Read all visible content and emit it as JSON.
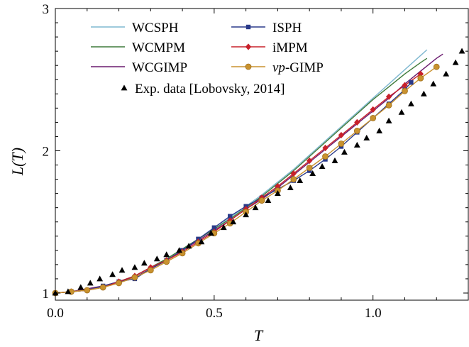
{
  "chart_data": {
    "type": "line",
    "title": "",
    "xlabel": "T",
    "ylabel": "L(T)",
    "xlim": [
      0,
      1.3
    ],
    "ylim": [
      0.95,
      3
    ],
    "xticks": [
      0.0,
      0.5,
      1.0
    ],
    "xtick_labels": [
      "0.0",
      "0.5",
      "1.0"
    ],
    "yticks": [
      1,
      2,
      3
    ],
    "ytick_labels": [
      "1",
      "2",
      "3"
    ],
    "grid": false,
    "legend_position": "top",
    "series": [
      {
        "name": "WCSPH",
        "color": "#7fb8d0",
        "marker": "none",
        "x": [
          0.0,
          0.05,
          0.1,
          0.15,
          0.2,
          0.25,
          0.3,
          0.35,
          0.4,
          0.45,
          0.5,
          0.55,
          0.6,
          0.65,
          0.7,
          0.75,
          0.8,
          0.85,
          0.9,
          0.95,
          1.0,
          1.05,
          1.1,
          1.15,
          1.17
        ],
        "y": [
          1.0,
          1.01,
          1.02,
          1.04,
          1.08,
          1.12,
          1.18,
          1.24,
          1.31,
          1.38,
          1.45,
          1.53,
          1.61,
          1.69,
          1.78,
          1.87,
          1.97,
          2.07,
          2.17,
          2.27,
          2.37,
          2.47,
          2.57,
          2.67,
          2.71
        ]
      },
      {
        "name": "WCMPM",
        "color": "#3e7a3a",
        "marker": "none",
        "x": [
          0.0,
          0.05,
          0.1,
          0.15,
          0.2,
          0.25,
          0.3,
          0.35,
          0.4,
          0.45,
          0.5,
          0.55,
          0.6,
          0.65,
          0.7,
          0.75,
          0.8,
          0.85,
          0.9,
          0.95,
          1.0,
          1.05,
          1.1,
          1.15,
          1.17
        ],
        "y": [
          1.0,
          1.01,
          1.02,
          1.04,
          1.08,
          1.12,
          1.18,
          1.24,
          1.31,
          1.38,
          1.45,
          1.52,
          1.6,
          1.68,
          1.77,
          1.86,
          1.96,
          2.06,
          2.16,
          2.26,
          2.36,
          2.45,
          2.54,
          2.62,
          2.65
        ]
      },
      {
        "name": "WCGIMP",
        "color": "#6a1a6e",
        "marker": "none",
        "x": [
          0.0,
          0.05,
          0.1,
          0.15,
          0.2,
          0.25,
          0.3,
          0.35,
          0.4,
          0.45,
          0.5,
          0.55,
          0.6,
          0.65,
          0.7,
          0.75,
          0.8,
          0.85,
          0.9,
          0.95,
          1.0,
          1.05,
          1.1,
          1.15,
          1.2,
          1.22
        ],
        "y": [
          1.0,
          1.01,
          1.03,
          1.05,
          1.08,
          1.11,
          1.17,
          1.23,
          1.3,
          1.37,
          1.44,
          1.51,
          1.59,
          1.66,
          1.74,
          1.83,
          1.92,
          2.01,
          2.1,
          2.19,
          2.28,
          2.37,
          2.47,
          2.56,
          2.65,
          2.68
        ]
      },
      {
        "name": "ISPH",
        "color": "#2a3a8a",
        "marker": "square",
        "x": [
          0.0,
          0.05,
          0.1,
          0.15,
          0.2,
          0.25,
          0.3,
          0.35,
          0.4,
          0.45,
          0.5,
          0.55,
          0.6,
          0.65,
          0.7,
          0.75,
          0.8,
          0.85,
          0.9,
          0.95,
          1.0,
          1.05,
          1.1,
          1.12
        ],
        "y": [
          1.0,
          1.01,
          1.02,
          1.05,
          1.08,
          1.1,
          1.17,
          1.23,
          1.3,
          1.38,
          1.46,
          1.54,
          1.61,
          1.67,
          1.73,
          1.79,
          1.86,
          1.94,
          2.03,
          2.13,
          2.23,
          2.33,
          2.43,
          2.48
        ]
      },
      {
        "name": "iMPM",
        "color": "#c8202a",
        "marker": "diamond",
        "x": [
          0.0,
          0.05,
          0.1,
          0.15,
          0.2,
          0.25,
          0.3,
          0.35,
          0.4,
          0.45,
          0.5,
          0.55,
          0.6,
          0.65,
          0.7,
          0.75,
          0.8,
          0.85,
          0.9,
          0.95,
          1.0,
          1.05,
          1.1,
          1.15
        ],
        "y": [
          1.0,
          1.01,
          1.02,
          1.04,
          1.08,
          1.12,
          1.18,
          1.23,
          1.29,
          1.36,
          1.43,
          1.51,
          1.59,
          1.67,
          1.75,
          1.84,
          1.93,
          2.02,
          2.11,
          2.2,
          2.29,
          2.38,
          2.46,
          2.54
        ]
      },
      {
        "name": "vp-GIMP",
        "color": "#c9922e",
        "marker": "circle",
        "x": [
          0.0,
          0.05,
          0.1,
          0.15,
          0.2,
          0.25,
          0.3,
          0.35,
          0.4,
          0.45,
          0.5,
          0.55,
          0.6,
          0.65,
          0.7,
          0.75,
          0.8,
          0.85,
          0.9,
          0.95,
          1.0,
          1.05,
          1.1,
          1.15,
          1.2
        ],
        "y": [
          1.0,
          1.01,
          1.02,
          1.04,
          1.07,
          1.11,
          1.16,
          1.22,
          1.28,
          1.35,
          1.42,
          1.49,
          1.57,
          1.65,
          1.72,
          1.8,
          1.88,
          1.96,
          2.05,
          2.14,
          2.23,
          2.32,
          2.42,
          2.51,
          2.59
        ]
      },
      {
        "name": "Exp. data [Lobovsky, 2014]",
        "color": "#000000",
        "marker": "triangle",
        "line": false,
        "x": [
          0.0,
          0.04,
          0.08,
          0.11,
          0.14,
          0.18,
          0.21,
          0.25,
          0.28,
          0.32,
          0.35,
          0.39,
          0.42,
          0.46,
          0.49,
          0.53,
          0.56,
          0.6,
          0.63,
          0.67,
          0.7,
          0.74,
          0.77,
          0.81,
          0.84,
          0.88,
          0.91,
          0.95,
          0.98,
          1.02,
          1.05,
          1.09,
          1.12,
          1.16,
          1.19,
          1.23,
          1.26,
          1.28
        ],
        "y": [
          1.0,
          1.01,
          1.04,
          1.07,
          1.1,
          1.13,
          1.16,
          1.18,
          1.21,
          1.24,
          1.27,
          1.3,
          1.33,
          1.36,
          1.42,
          1.46,
          1.5,
          1.55,
          1.6,
          1.65,
          1.7,
          1.74,
          1.79,
          1.84,
          1.89,
          1.93,
          1.99,
          2.04,
          2.09,
          2.14,
          2.21,
          2.27,
          2.33,
          2.4,
          2.47,
          2.54,
          2.62,
          2.7
        ]
      }
    ]
  }
}
